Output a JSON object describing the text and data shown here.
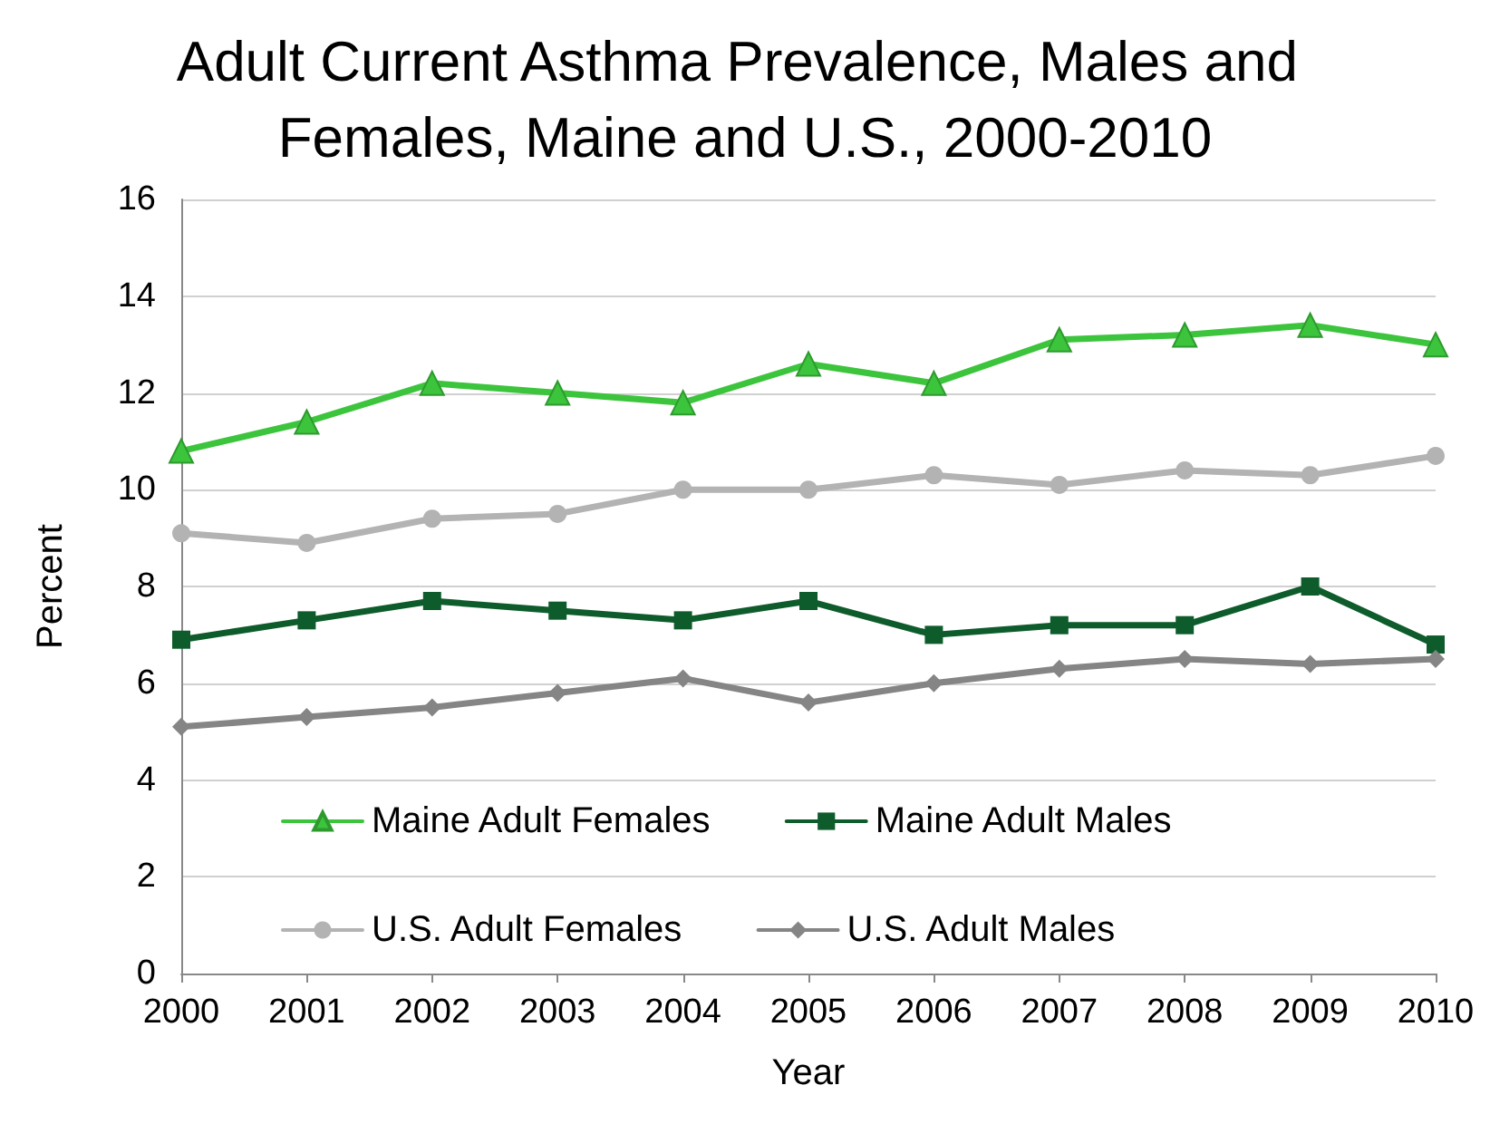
{
  "chart_data": {
    "type": "line",
    "title": "Adult Current Asthma Prevalence, Males and Females, Maine and U.S., 2000-2010",
    "xlabel": "Year",
    "ylabel": "Percent",
    "categories": [
      "2000",
      "2001",
      "2002",
      "2003",
      "2004",
      "2005",
      "2006",
      "2007",
      "2008",
      "2009",
      "2010"
    ],
    "series": [
      {
        "name": "Maine Adult Females",
        "color": "#3cc43c",
        "marker": "triangle",
        "values": [
          10.8,
          11.4,
          12.2,
          12.0,
          11.8,
          12.6,
          12.2,
          13.1,
          13.2,
          13.4,
          13.0
        ]
      },
      {
        "name": "Maine Adult Males",
        "color": "#0e5c2c",
        "marker": "square",
        "values": [
          6.9,
          7.3,
          7.7,
          7.5,
          7.3,
          7.7,
          7.0,
          7.2,
          7.2,
          8.0,
          6.8
        ]
      },
      {
        "name": "U.S. Adult Females",
        "color": "#b3b3b3",
        "marker": "circle",
        "values": [
          9.1,
          8.9,
          9.4,
          9.5,
          10.0,
          10.0,
          10.3,
          10.1,
          10.4,
          10.3,
          10.7
        ]
      },
      {
        "name": "U.S. Adult Males",
        "color": "#858585",
        "marker": "diamond",
        "values": [
          5.1,
          5.3,
          5.5,
          5.8,
          6.1,
          5.6,
          6.0,
          6.3,
          6.5,
          6.4,
          6.5
        ]
      }
    ],
    "ylim": [
      0,
      16
    ],
    "yticks": [
      0,
      2,
      4,
      6,
      8,
      10,
      12,
      14,
      16
    ],
    "grid": "y",
    "legend": "bottom",
    "line_style": "solid"
  }
}
